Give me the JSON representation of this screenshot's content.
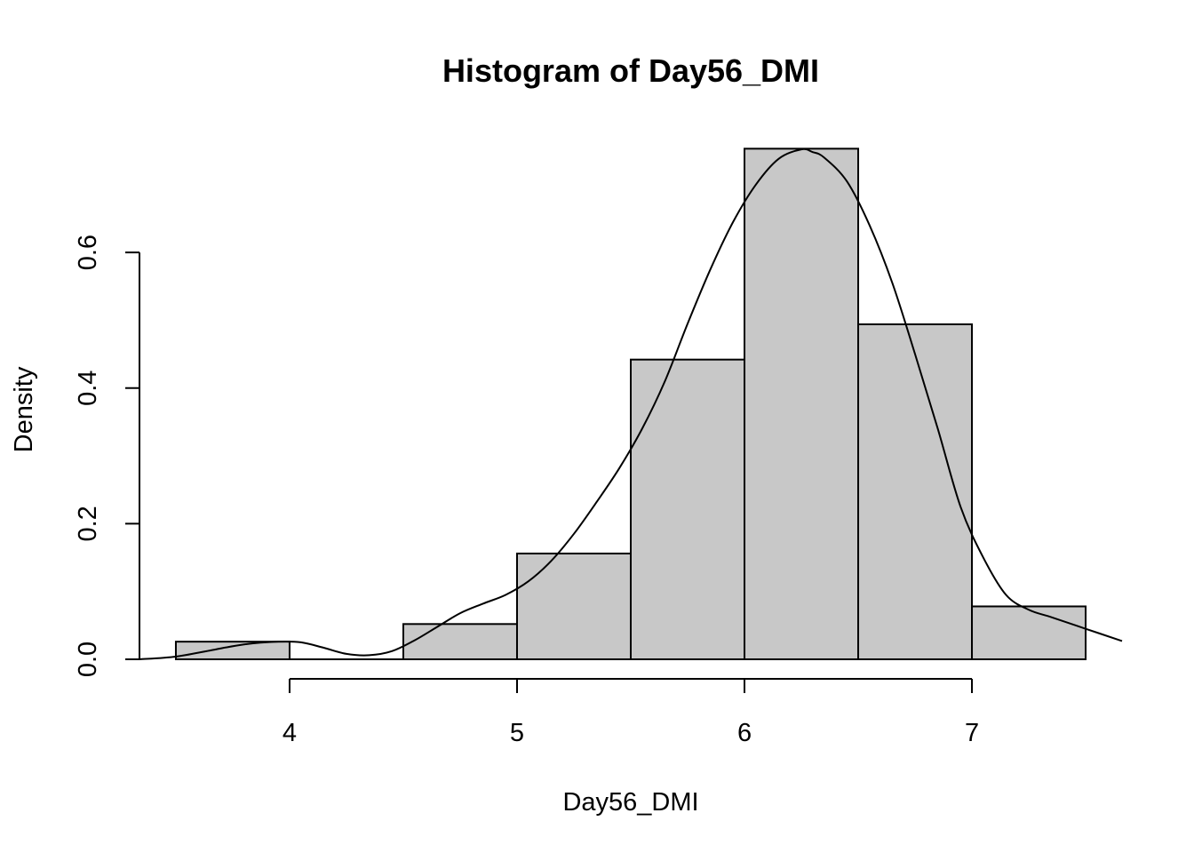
{
  "chart_data": {
    "type": "bar",
    "title": "Histogram of Day56_DMI",
    "xlabel": "Day56_DMI",
    "ylabel": "Density",
    "xlim": [
      3.34,
      7.66
    ],
    "ylim": [
      0,
      0.76
    ],
    "x_ticks": [
      4,
      5,
      6,
      7
    ],
    "y_ticks": [
      0.0,
      0.2,
      0.4,
      0.6
    ],
    "x_tick_labels": [
      "4",
      "5",
      "6",
      "7"
    ],
    "y_tick_labels": [
      "0.0",
      "0.2",
      "0.4",
      "0.6"
    ],
    "bins": [
      {
        "start": 3.5,
        "end": 4.0,
        "density": 0.026
      },
      {
        "start": 4.0,
        "end": 4.5,
        "density": 0.0
      },
      {
        "start": 4.5,
        "end": 5.0,
        "density": 0.052
      },
      {
        "start": 5.0,
        "end": 5.5,
        "density": 0.156
      },
      {
        "start": 5.5,
        "end": 6.0,
        "density": 0.442
      },
      {
        "start": 6.0,
        "end": 6.5,
        "density": 0.753
      },
      {
        "start": 6.5,
        "end": 7.0,
        "density": 0.494
      },
      {
        "start": 7.0,
        "end": 7.5,
        "density": 0.078
      }
    ],
    "density_curve": {
      "x": [
        3.34,
        3.5,
        3.65,
        3.8,
        3.95,
        4.05,
        4.15,
        4.25,
        4.35,
        4.45,
        4.55,
        4.65,
        4.75,
        4.85,
        4.95,
        5.05,
        5.15,
        5.25,
        5.35,
        5.45,
        5.55,
        5.65,
        5.75,
        5.85,
        5.95,
        6.05,
        6.15,
        6.25,
        6.3,
        6.35,
        6.45,
        6.55,
        6.65,
        6.75,
        6.85,
        6.95,
        7.05,
        7.15,
        7.25,
        7.35,
        7.5,
        7.66
      ],
      "y": [
        0.0,
        0.004,
        0.013,
        0.022,
        0.026,
        0.025,
        0.017,
        0.008,
        0.006,
        0.012,
        0.028,
        0.048,
        0.068,
        0.082,
        0.095,
        0.115,
        0.145,
        0.185,
        0.232,
        0.282,
        0.34,
        0.41,
        0.495,
        0.575,
        0.645,
        0.7,
        0.738,
        0.752,
        0.748,
        0.74,
        0.705,
        0.64,
        0.555,
        0.45,
        0.34,
        0.225,
        0.15,
        0.095,
        0.073,
        0.062,
        0.045,
        0.027
      ]
    }
  }
}
